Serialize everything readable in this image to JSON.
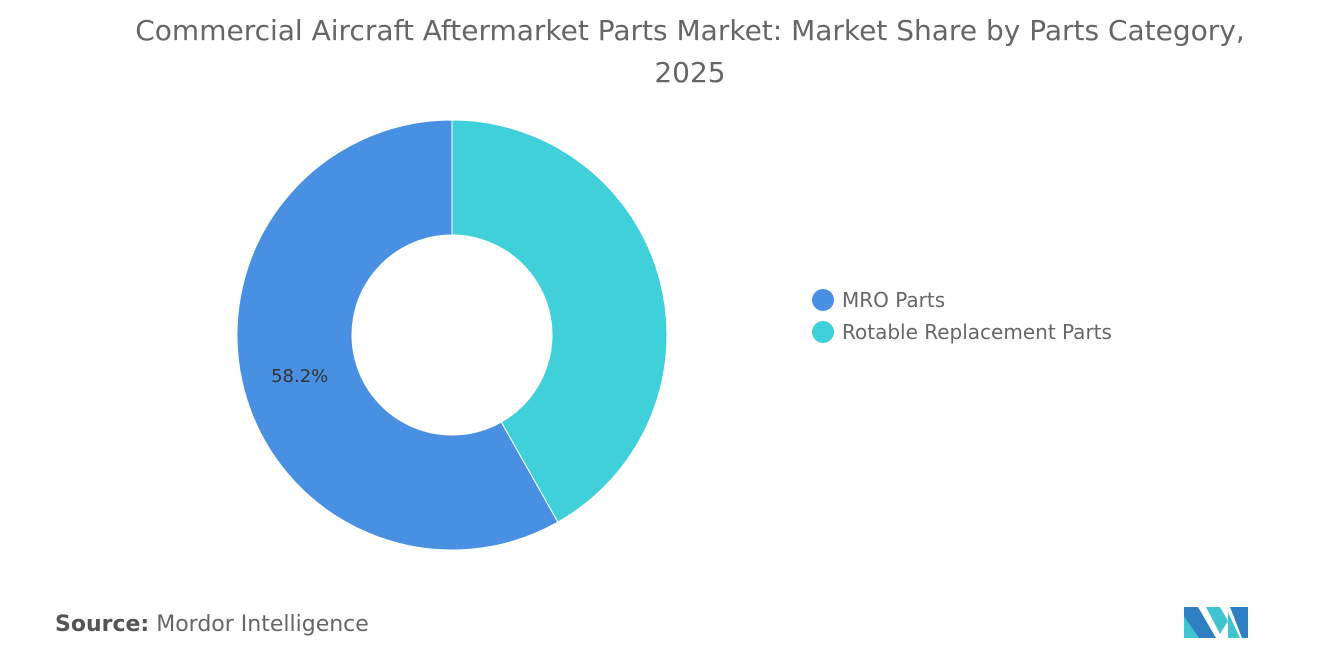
{
  "chart_data": {
    "type": "pie",
    "title": "Commercial Aircraft Aftermarket Parts Market: Market Share by Parts Category, 2025",
    "donut": true,
    "categories": [
      "MRO Parts",
      "Rotable Replacement Parts"
    ],
    "values": [
      58.2,
      41.8
    ],
    "colors": [
      "#4A90E2",
      "#40D0DA"
    ],
    "data_labels": [
      "58.2%",
      ""
    ],
    "legend_position": "right"
  },
  "source": {
    "label": "Source:",
    "text": "Mordor Intelligence"
  },
  "logo": {
    "colors": [
      "#2D7FC1",
      "#40C4D0"
    ]
  }
}
